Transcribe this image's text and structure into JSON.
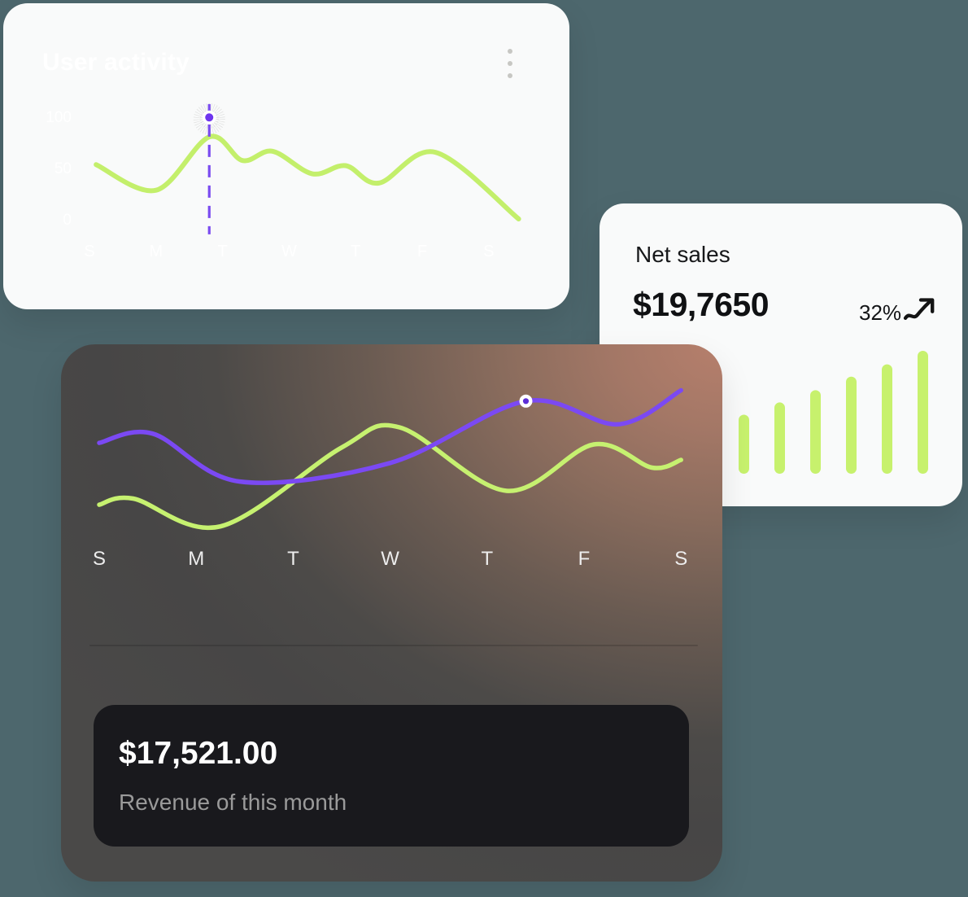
{
  "page": {
    "background_color": "#4d676d"
  },
  "user_activity_card": {
    "title": "User activity",
    "menu_icon": "kebab-menu-icon",
    "card_color": "#f9fafa",
    "title_color": "#ffffff"
  },
  "net_sales_card": {
    "title": "Net sales",
    "value": "$19,7650",
    "delta": "32%",
    "trend_icon": "trending-up-arrow-icon",
    "card_color": "#f9fafa",
    "bar_color": "#c7f16d"
  },
  "revenue_card": {
    "revenue_value": "$17,521.00",
    "revenue_label": "Revenue of this month",
    "inner_card_color": "#19191d",
    "gradient_colors": [
      "#474646",
      "#b67f6c"
    ]
  },
  "chart_data": [
    {
      "id": "user_activity",
      "type": "line",
      "title": "User activity",
      "x_tick_labels": [
        "S",
        "M",
        "T",
        "W",
        "T",
        "F",
        "S"
      ],
      "y_tick_labels": [
        "100",
        "50",
        "0"
      ],
      "ylim": [
        0,
        100
      ],
      "grid": false,
      "legend": false,
      "series": [
        {
          "name": "activity",
          "color": "#c3ef6b",
          "points": [
            [
              0.1,
              53
            ],
            [
              1.0,
              28
            ],
            [
              1.8,
              80
            ],
            [
              2.3,
              57
            ],
            [
              2.75,
              66
            ],
            [
              3.35,
              44
            ],
            [
              3.85,
              52
            ],
            [
              4.35,
              35
            ],
            [
              5.2,
              65
            ],
            [
              6.45,
              0
            ]
          ]
        }
      ],
      "highlight": {
        "x": 1.8,
        "dot_value": 99,
        "line_top_value": 112,
        "line_bottom_value": -15,
        "color": "#7a4bf0",
        "dot_color": "#6e35ee",
        "scribble_color": "#c6c6c3"
      }
    },
    {
      "id": "net_sales_bars",
      "type": "bar",
      "values": [
        48,
        58,
        68,
        79,
        89,
        100
      ],
      "color": "#c7f16d",
      "ylim": [
        0,
        100
      ]
    },
    {
      "id": "weekly_revenue",
      "type": "line",
      "x_tick_labels": [
        "S",
        "M",
        "T",
        "W",
        "T",
        "F",
        "S"
      ],
      "ylim": [
        0,
        100
      ],
      "grid": false,
      "legend": false,
      "series": [
        {
          "name": "green",
          "color": "#c6f170",
          "points": [
            [
              0,
              21
            ],
            [
              0.35,
              25
            ],
            [
              1.25,
              7
            ],
            [
              2.5,
              58
            ],
            [
              3.1,
              71
            ],
            [
              4.2,
              30
            ],
            [
              5.1,
              60
            ],
            [
              5.7,
              45
            ],
            [
              6.0,
              50
            ]
          ]
        },
        {
          "name": "purple",
          "color": "#7b49f3",
          "points": [
            [
              0,
              61
            ],
            [
              0.55,
              67
            ],
            [
              1.45,
              36
            ],
            [
              3.0,
              48
            ],
            [
              4.4,
              88
            ],
            [
              5.35,
              73
            ],
            [
              6.0,
              95
            ]
          ]
        }
      ],
      "marker": {
        "series": "purple",
        "x": 4.4,
        "value": 88,
        "ring_color": "#ffffff",
        "center_color": "#5d2ed6"
      }
    }
  ]
}
